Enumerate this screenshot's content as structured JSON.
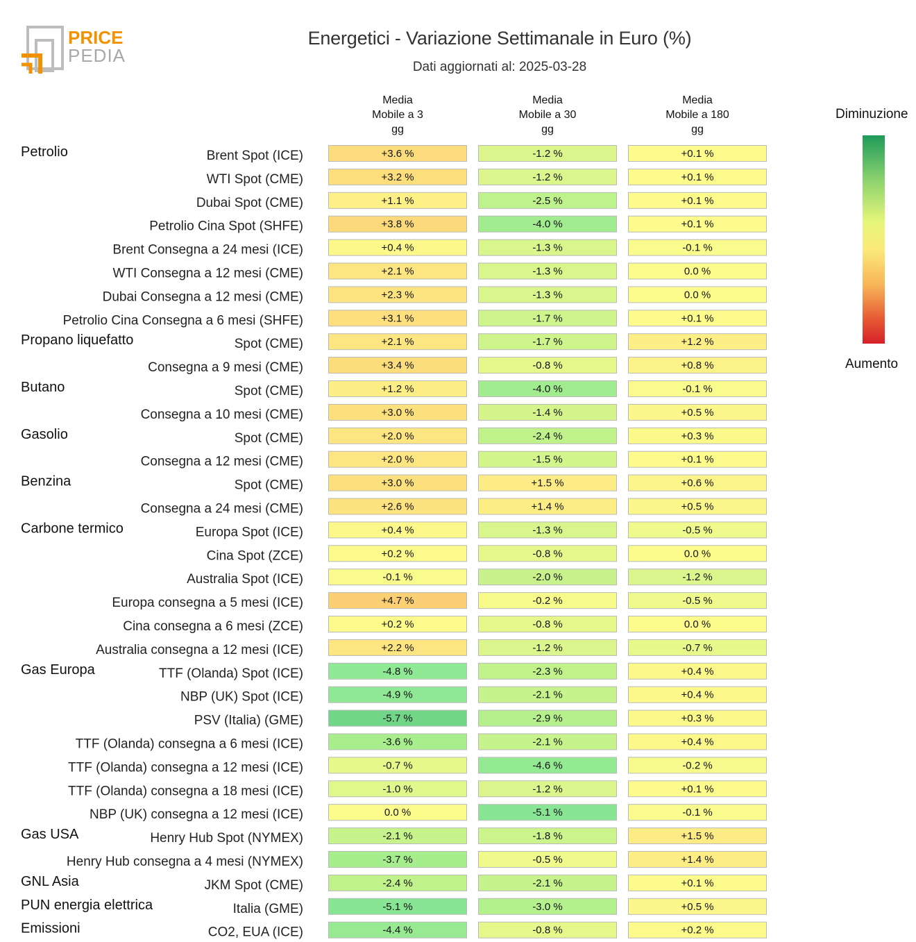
{
  "header": {
    "logo_line1": "PRICE",
    "logo_line2": "PEDIA",
    "title": "Energetici - Variazione Settimanale in Euro (%)",
    "subtitle": "Dati aggiornati al: 2025-03-28"
  },
  "legend": {
    "top_label": "Diminuzione",
    "bottom_label": "Aumento"
  },
  "colors": {
    "decrease": "#1e9a5a",
    "neutral": "#fbfb8c",
    "increase": "#d62028",
    "cell_border": "#b9b9b9"
  },
  "chart_data": {
    "type": "table",
    "title": "Energetici - Variazione Settimanale in Euro (%)",
    "columns": [
      [
        "Media",
        "Mobile a 3",
        "gg"
      ],
      [
        "Media",
        "Mobile a 30",
        "gg"
      ],
      [
        "Media",
        "Mobile a 180",
        "gg"
      ]
    ],
    "rows": [
      {
        "group": "Petrolio",
        "label": "Brent Spot (ICE)",
        "values": [
          3.6,
          -1.2,
          0.1
        ],
        "text": [
          "+3.6 %",
          "-1.2 %",
          "+0.1 %"
        ]
      },
      {
        "group": "",
        "label": "WTI Spot (CME)",
        "values": [
          3.2,
          -1.2,
          0.1
        ],
        "text": [
          "+3.2 %",
          "-1.2 %",
          "+0.1 %"
        ]
      },
      {
        "group": "",
        "label": "Dubai Spot (CME)",
        "values": [
          1.1,
          -2.5,
          0.1
        ],
        "text": [
          "+1.1 %",
          "-2.5 %",
          "+0.1 %"
        ]
      },
      {
        "group": "",
        "label": "Petrolio Cina Spot (SHFE)",
        "values": [
          3.8,
          -4.0,
          0.1
        ],
        "text": [
          "+3.8 %",
          "-4.0 %",
          "+0.1 %"
        ]
      },
      {
        "group": "",
        "label": "Brent Consegna a 24 mesi (ICE)",
        "values": [
          0.4,
          -1.3,
          -0.1
        ],
        "text": [
          "+0.4 %",
          "-1.3 %",
          "-0.1 %"
        ]
      },
      {
        "group": "",
        "label": "WTI Consegna a 12 mesi (CME)",
        "values": [
          2.1,
          -1.3,
          0.0
        ],
        "text": [
          "+2.1 %",
          "-1.3 %",
          "0.0 %"
        ]
      },
      {
        "group": "",
        "label": "Dubai Consegna a 12 mesi (CME)",
        "values": [
          2.3,
          -1.3,
          0.0
        ],
        "text": [
          "+2.3 %",
          "-1.3 %",
          "0.0 %"
        ]
      },
      {
        "group": "",
        "label": "Petrolio Cina Consegna a 6 mesi (SHFE)",
        "values": [
          3.1,
          -1.7,
          0.1
        ],
        "text": [
          "+3.1 %",
          "-1.7 %",
          "+0.1 %"
        ]
      },
      {
        "group": "Propano liquefatto",
        "label": "Spot (CME)",
        "values": [
          2.1,
          -1.7,
          1.2
        ],
        "text": [
          "+2.1 %",
          "-1.7 %",
          "+1.2 %"
        ]
      },
      {
        "group": "",
        "label": "Consegna a 9 mesi (CME)",
        "values": [
          3.4,
          -0.8,
          0.8
        ],
        "text": [
          "+3.4 %",
          "-0.8 %",
          "+0.8 %"
        ]
      },
      {
        "group": "Butano",
        "label": "Spot (CME)",
        "values": [
          1.2,
          -4.0,
          -0.1
        ],
        "text": [
          "+1.2 %",
          "-4.0 %",
          "-0.1 %"
        ]
      },
      {
        "group": "",
        "label": "Consegna a 10 mesi (CME)",
        "values": [
          3.0,
          -1.4,
          0.5
        ],
        "text": [
          "+3.0 %",
          "-1.4 %",
          "+0.5 %"
        ]
      },
      {
        "group": "Gasolio",
        "label": "Spot (CME)",
        "values": [
          2.0,
          -2.4,
          0.3
        ],
        "text": [
          "+2.0 %",
          "-2.4 %",
          "+0.3 %"
        ]
      },
      {
        "group": "",
        "label": "Consegna a 12 mesi (CME)",
        "values": [
          2.0,
          -1.5,
          0.1
        ],
        "text": [
          "+2.0 %",
          "-1.5 %",
          "+0.1 %"
        ]
      },
      {
        "group": "Benzina",
        "label": "Spot (CME)",
        "values": [
          3.0,
          1.5,
          0.6
        ],
        "text": [
          "+3.0 %",
          "+1.5 %",
          "+0.6 %"
        ]
      },
      {
        "group": "",
        "label": "Consegna a 24 mesi (CME)",
        "values": [
          2.6,
          1.4,
          0.5
        ],
        "text": [
          "+2.6 %",
          "+1.4 %",
          "+0.5 %"
        ]
      },
      {
        "group": "Carbone termico",
        "label": "Europa Spot (ICE)",
        "values": [
          0.4,
          -1.3,
          -0.5
        ],
        "text": [
          "+0.4 %",
          "-1.3 %",
          "-0.5 %"
        ]
      },
      {
        "group": "",
        "label": "Cina Spot (ZCE)",
        "values": [
          0.2,
          -0.8,
          0.0
        ],
        "text": [
          "+0.2 %",
          "-0.8 %",
          "0.0 %"
        ]
      },
      {
        "group": "",
        "label": "Australia Spot (ICE)",
        "values": [
          -0.1,
          -2.0,
          -1.2
        ],
        "text": [
          "-0.1 %",
          "-2.0 %",
          "-1.2 %"
        ]
      },
      {
        "group": "",
        "label": "Europa consegna a 5 mesi (ICE)",
        "values": [
          4.7,
          -0.2,
          -0.5
        ],
        "text": [
          "+4.7 %",
          "-0.2 %",
          "-0.5 %"
        ]
      },
      {
        "group": "",
        "label": "Cina consegna a 6 mesi (ZCE)",
        "values": [
          0.2,
          -0.8,
          0.0
        ],
        "text": [
          "+0.2 %",
          "-0.8 %",
          "0.0 %"
        ]
      },
      {
        "group": "",
        "label": "Australia consegna a 12 mesi (ICE)",
        "values": [
          2.2,
          -1.2,
          -0.7
        ],
        "text": [
          "+2.2 %",
          "-1.2 %",
          "-0.7 %"
        ]
      },
      {
        "group": "Gas Europa",
        "label": "TTF (Olanda) Spot (ICE)",
        "values": [
          -4.8,
          -2.3,
          0.4
        ],
        "text": [
          "-4.8 %",
          "-2.3 %",
          "+0.4 %"
        ]
      },
      {
        "group": "",
        "label": "NBP (UK) Spot (ICE)",
        "values": [
          -4.9,
          -2.1,
          0.4
        ],
        "text": [
          "-4.9 %",
          "-2.1 %",
          "+0.4 %"
        ]
      },
      {
        "group": "",
        "label": "PSV (Italia) (GME)",
        "values": [
          -5.7,
          -2.9,
          0.3
        ],
        "text": [
          "-5.7 %",
          "-2.9 %",
          "+0.3 %"
        ]
      },
      {
        "group": "",
        "label": "TTF (Olanda) consegna a 6 mesi (ICE)",
        "values": [
          -3.6,
          -2.1,
          0.4
        ],
        "text": [
          "-3.6 %",
          "-2.1 %",
          "+0.4 %"
        ]
      },
      {
        "group": "",
        "label": "TTF (Olanda) consegna a 12 mesi (ICE)",
        "values": [
          -0.7,
          -4.6,
          -0.2
        ],
        "text": [
          "-0.7 %",
          "-4.6 %",
          "-0.2 %"
        ]
      },
      {
        "group": "",
        "label": "TTF (Olanda) consegna a 18 mesi (ICE)",
        "values": [
          -1.0,
          -1.2,
          0.1
        ],
        "text": [
          "-1.0 %",
          "-1.2 %",
          "+0.1 %"
        ]
      },
      {
        "group": "",
        "label": "NBP (UK) consegna a 12 mesi (ICE)",
        "values": [
          0.0,
          -5.1,
          -0.1
        ],
        "text": [
          "0.0 %",
          "-5.1 %",
          "-0.1 %"
        ]
      },
      {
        "group": "Gas USA",
        "label": "Henry Hub Spot (NYMEX)",
        "values": [
          -2.1,
          -1.8,
          1.5
        ],
        "text": [
          "-2.1 %",
          "-1.8 %",
          "+1.5 %"
        ]
      },
      {
        "group": "",
        "label": "Henry Hub consegna a 4 mesi (NYMEX)",
        "values": [
          -3.7,
          -0.5,
          1.4
        ],
        "text": [
          "-3.7 %",
          "-0.5 %",
          "+1.4 %"
        ]
      },
      {
        "group": "GNL Asia",
        "label": "JKM Spot (CME)",
        "values": [
          -2.4,
          -2.1,
          0.1
        ],
        "text": [
          "-2.4 %",
          "-2.1 %",
          "+0.1 %"
        ]
      },
      {
        "group": "PUN energia elettrica",
        "label": "Italia (GME)",
        "values": [
          -5.1,
          -3.0,
          0.5
        ],
        "text": [
          "-5.1 %",
          "-3.0 %",
          "+0.5 %"
        ]
      },
      {
        "group": "Emissioni",
        "label": "CO2, EUA (ICE)",
        "values": [
          -4.4,
          -0.8,
          0.2
        ],
        "text": [
          "-4.4 %",
          "-0.8 %",
          "+0.2 %"
        ]
      }
    ]
  }
}
